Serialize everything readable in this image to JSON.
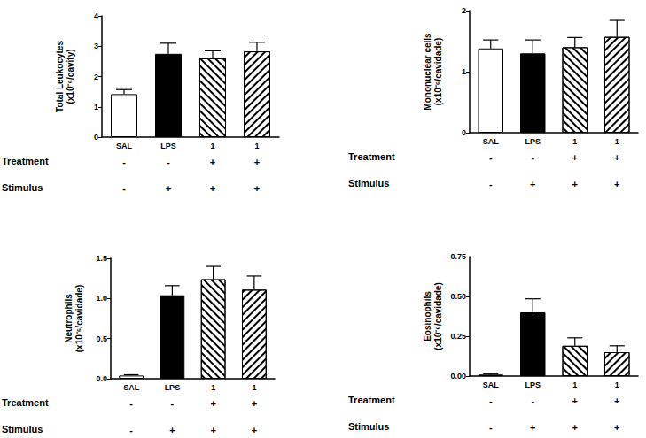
{
  "chart_data": [
    {
      "type": "bar",
      "y_label": "Total Leukocytes\n(x10⁻⁶/cavity)",
      "categories": [
        "SAL",
        "LPS",
        "1",
        "1"
      ],
      "values": [
        1.42,
        2.75,
        2.6,
        2.83
      ],
      "errors": [
        0.15,
        0.35,
        0.25,
        0.3
      ],
      "colors": [
        "#ffffff",
        "#000000",
        "#ffffff",
        "#ffffff"
      ],
      "ylim": [
        0,
        4
      ],
      "yticks": [
        0,
        1,
        2,
        3,
        4
      ],
      "grid": false,
      "rows": [
        {
          "label": "Treatment",
          "values": [
            "-",
            "-",
            "+",
            "+"
          ]
        },
        {
          "label": "Stimulus",
          "values": [
            "-",
            "+",
            "+",
            "+"
          ]
        }
      ]
    },
    {
      "type": "bar",
      "y_label": "Mononuclear cells\n(x10⁻⁶/cavidade)",
      "categories": [
        "SAL",
        "LPS",
        "1",
        "1"
      ],
      "values": [
        1.38,
        1.3,
        1.4,
        1.57
      ],
      "errors": [
        0.14,
        0.22,
        0.16,
        0.27
      ],
      "colors": [
        "#ffffff",
        "#000000",
        "#ffffff",
        "#ffffff"
      ],
      "ylim": [
        0,
        2
      ],
      "yticks": [
        0,
        1,
        2
      ],
      "grid": false,
      "rows": [
        {
          "label": "Treatment",
          "values": [
            "-",
            "-",
            "+",
            "+"
          ]
        },
        {
          "label": "Stimulus",
          "values": [
            "-",
            "+",
            "+",
            "+"
          ]
        }
      ]
    },
    {
      "type": "bar",
      "y_label": "Neutrophils\n(x10⁻⁶/cavidade)",
      "categories": [
        "SAL",
        "LPS",
        "1",
        "1"
      ],
      "values": [
        0.04,
        1.04,
        1.24,
        1.11
      ],
      "errors": [
        0.01,
        0.12,
        0.16,
        0.17
      ],
      "colors": [
        "#ffffff",
        "#000000",
        "#ffffff",
        "#ffffff"
      ],
      "ylim": [
        0,
        1.5
      ],
      "yticks": [
        {
          "value": 0,
          "label": "0.0"
        },
        0.5,
        {
          "value": 1,
          "label": "1.0"
        },
        1.5
      ],
      "grid": false,
      "rows": [
        {
          "label": "Treatment",
          "values": [
            "-",
            "-",
            "+",
            "+"
          ]
        },
        {
          "label": "Stimulus",
          "values": [
            "-",
            "+",
            "+",
            "+"
          ]
        }
      ]
    },
    {
      "type": "bar",
      "y_label": "Eosinophils\n(x10⁻⁶/cavidade)",
      "categories": [
        "SAL",
        "LPS",
        "1",
        "1"
      ],
      "values": [
        0.01,
        0.4,
        0.19,
        0.15
      ],
      "errors": [
        0.005,
        0.085,
        0.05,
        0.04
      ],
      "colors": [
        "#ffffff",
        "#000000",
        "#ffffff",
        "#ffffff"
      ],
      "ylim": [
        0,
        0.75
      ],
      "yticks": [
        {
          "value": 0,
          "label": "0.00"
        },
        0.25,
        {
          "value": 0.5,
          "label": "0.50"
        },
        0.75
      ],
      "grid": false,
      "rows": [
        {
          "label": "Treatment",
          "values": [
            "-",
            "-",
            "+",
            "+"
          ]
        },
        {
          "label": "Stimulus",
          "values": [
            "-",
            "+",
            "+",
            "+"
          ]
        }
      ]
    }
  ]
}
